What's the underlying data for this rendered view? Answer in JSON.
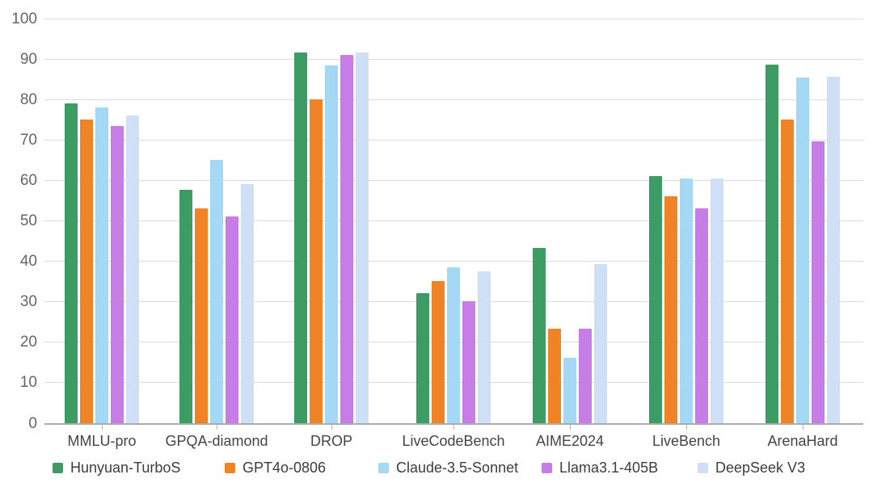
{
  "chart_data": {
    "type": "bar",
    "title": "",
    "xlabel": "",
    "ylabel": "",
    "ylim": [
      0,
      100
    ],
    "ytick_step": 10,
    "ytick_labels": [
      "0",
      "10",
      "20",
      "30",
      "40",
      "50",
      "60",
      "70",
      "80",
      "90",
      "100"
    ],
    "grid": true,
    "legend_position": "bottom",
    "categories": [
      "MMLU-pro",
      "GPQA-diamond",
      "DROP",
      "LiveCodeBench",
      "AIME2024",
      "LiveBench",
      "ArenaHard"
    ],
    "series": [
      {
        "name": "Hunyuan-TurboS",
        "color": "#3d9c63",
        "values": [
          79.0,
          57.5,
          91.5,
          32.0,
          43.3,
          61.0,
          88.5
        ]
      },
      {
        "name": "GPT4o-0806",
        "color": "#ef8326",
        "values": [
          75.0,
          53.0,
          80.0,
          35.0,
          23.3,
          56.0,
          75.0
        ]
      },
      {
        "name": "Claude-3.5-Sonnet",
        "color": "#a5d8f4",
        "values": [
          78.0,
          65.0,
          88.3,
          38.5,
          16.0,
          60.3,
          85.3
        ]
      },
      {
        "name": "Llama3.1-405B",
        "color": "#c77de6",
        "values": [
          73.3,
          51.0,
          91.0,
          30.0,
          23.3,
          53.0,
          69.5
        ]
      },
      {
        "name": "DeepSeek V3",
        "color": "#cfdff6",
        "values": [
          76.0,
          59.0,
          91.5,
          37.5,
          39.2,
          60.3,
          85.5
        ]
      }
    ],
    "colors": {
      "gridline": "#dcdcdc",
      "axis_line": "#ababab",
      "y_label_text": "#666666",
      "x_label_text": "#454545",
      "legend_text": "#3c3c3c"
    }
  }
}
